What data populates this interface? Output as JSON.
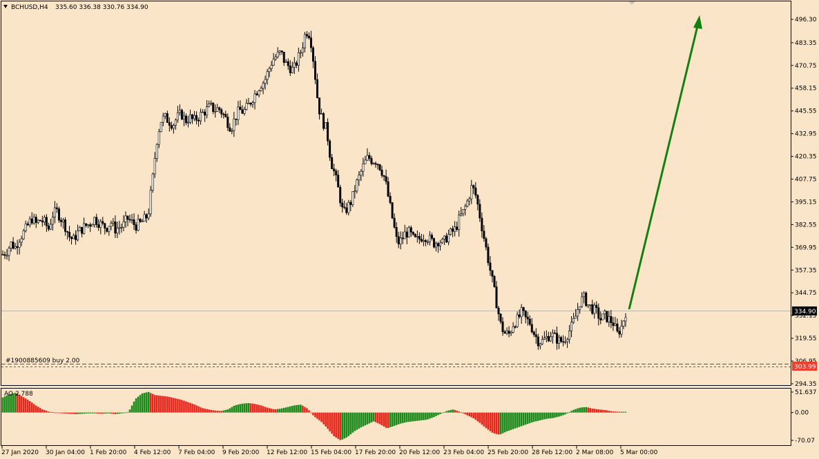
{
  "header": {
    "symbol": "BCHUSD,H4",
    "ohlc": "335.60 336.38 330.76 334.90"
  },
  "price_axis": {
    "ticks": [
      "496.30",
      "483.35",
      "470.75",
      "458.15",
      "445.55",
      "432.95",
      "420.35",
      "407.75",
      "395.15",
      "382.55",
      "369.95",
      "357.35",
      "344.75",
      "332.15",
      "319.55",
      "306.95",
      "294.35"
    ],
    "ylim": [
      294.35,
      496.3
    ],
    "current_price_label": "334.90",
    "order_price_label": "303.99"
  },
  "order_line": {
    "label": "#1900885609 buy 2.00",
    "price": 303.99,
    "take_level": 305.2
  },
  "indicator": {
    "name": "AO 2.788",
    "ticks": [
      "51.637",
      "0.00",
      "-70.07"
    ],
    "ylim": [
      -70.07,
      51.637
    ]
  },
  "time_axis": {
    "labels": [
      "27 Jan 2020",
      "30 Jan 04:00",
      "1 Feb 20:00",
      "4 Feb 12:00",
      "7 Feb 04:00",
      "9 Feb 20:00",
      "12 Feb 12:00",
      "15 Feb 04:00",
      "17 Feb 20:00",
      "20 Feb 12:00",
      "23 Feb 04:00",
      "25 Feb 20:00",
      "28 Feb 12:00",
      "2 Mar 08:00",
      "5 Mar 00:00"
    ]
  },
  "colors": {
    "background": "#fbe5c8",
    "candle_body_up": "#ffffff",
    "candle_body_down": "#000000",
    "ao_up": "#1a8a1a",
    "ao_down": "#e8261c",
    "arrow": "#118011",
    "order_label_bg": "#f03c2c"
  },
  "chart_data": {
    "type": "candlestick",
    "price_anchors": [
      366,
      368,
      372,
      370,
      375,
      378,
      382,
      386,
      383,
      385,
      384,
      380,
      388,
      390,
      386,
      382,
      376,
      374,
      378,
      380,
      382,
      383,
      386,
      384,
      382,
      381,
      384,
      380,
      381,
      382,
      386,
      384,
      382,
      383,
      385,
      388,
      406,
      428,
      440,
      442,
      440,
      438,
      442,
      444,
      440,
      442,
      440,
      442,
      444,
      446,
      448,
      446,
      447,
      444,
      440,
      436,
      442,
      446,
      445,
      448,
      452,
      456,
      460,
      462,
      468,
      474,
      476,
      478,
      472,
      470,
      468,
      474,
      480,
      490,
      488,
      470,
      448,
      440,
      435,
      418,
      410,
      400,
      388,
      392,
      396,
      404,
      410,
      416,
      420,
      418,
      418,
      414,
      408,
      396,
      384,
      372,
      374,
      378,
      378,
      374,
      374,
      376,
      376,
      374,
      372,
      374,
      372,
      376,
      378,
      380,
      386,
      390,
      396,
      404,
      398,
      386,
      374,
      362,
      350,
      338,
      326,
      322,
      322,
      328,
      330,
      334,
      330,
      328,
      322,
      318,
      318,
      320,
      322,
      320,
      318,
      318,
      322,
      326,
      332,
      340,
      342,
      338,
      336,
      334,
      330,
      332,
      330,
      328,
      322,
      326,
      334
    ],
    "ao_anchors": [
      38,
      46,
      50,
      40,
      30,
      18,
      8,
      2,
      0,
      -2,
      -3,
      -4,
      -3,
      -2,
      -2,
      -3,
      -2,
      -4,
      -2,
      2,
      34,
      48,
      52,
      44,
      42,
      40,
      36,
      32,
      26,
      20,
      12,
      8,
      5,
      4,
      8,
      18,
      22,
      24,
      22,
      18,
      12,
      8,
      10,
      14,
      18,
      20,
      10,
      -10,
      -22,
      -40,
      -60,
      -70,
      -62,
      -48,
      -38,
      -30,
      -22,
      -30,
      -40,
      -34,
      -28,
      -24,
      -22,
      -20,
      -18,
      -12,
      -4,
      4,
      8,
      2,
      -6,
      -14,
      -26,
      -40,
      -52,
      -56,
      -48,
      -42,
      -36,
      -30,
      -24,
      -20,
      -16,
      -14,
      -10,
      -4,
      6,
      12,
      14,
      10,
      8,
      6,
      3,
      2,
      2
    ]
  }
}
